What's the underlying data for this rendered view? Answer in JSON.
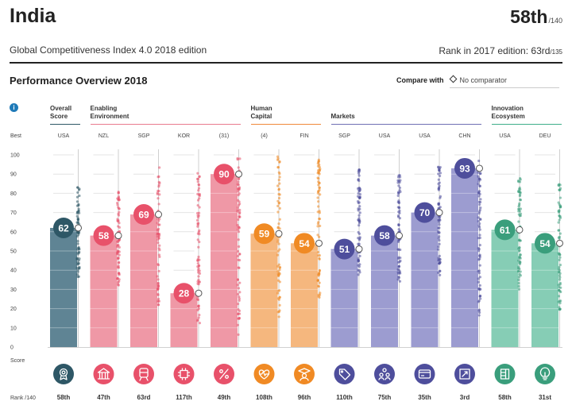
{
  "header": {
    "country": "India",
    "rank": "58th",
    "rank_of": "/140",
    "subtitle": "Global Competitiveness Index 4.0 2018 edition",
    "rank_2017_label": "Rank in 2017 edition: 63rd",
    "rank_2017_of": "/135"
  },
  "overview": {
    "title": "Performance Overview 2018",
    "compare_label": "Compare with",
    "compare_value": "No comparator",
    "info_icon": "i"
  },
  "groups": [
    {
      "label": "Overall\nScore",
      "color": "#2e5766",
      "pillars": [
        0
      ]
    },
    {
      "label": "Enabling\nEnvironment",
      "color": "#e87a8e",
      "pillars": [
        1,
        2,
        3,
        4
      ]
    },
    {
      "label": "Human\nCapital",
      "color": "#f0893a",
      "pillars": [
        5,
        6
      ]
    },
    {
      "label": "Markets",
      "color": "#6f6fb3",
      "pillars": [
        7,
        8,
        9,
        10
      ]
    },
    {
      "label": "Innovation\nEcosystem",
      "color": "#3fae8a",
      "pillars": [
        11,
        12
      ]
    }
  ],
  "chart_data": {
    "type": "bar",
    "title": "Performance Overview 2018",
    "ylabel": "Score",
    "ylim": [
      0,
      100
    ],
    "yticks": [
      0,
      10,
      20,
      30,
      40,
      50,
      60,
      70,
      80,
      90,
      100
    ],
    "best_label": "Best",
    "score_label": "Score",
    "rank_label": "Rank /140",
    "categories": [
      "Overall Score",
      "Institutions",
      "Infrastructure",
      "ICT adoption",
      "Macroeconomic stability",
      "Health",
      "Skills",
      "Product market",
      "Labour market",
      "Financial system",
      "Market size",
      "Business dynamism",
      "Innovation capability"
    ],
    "best": [
      "USA",
      "NZL",
      "SGP",
      "KOR",
      "(31)",
      "(4)",
      "FIN",
      "SGP",
      "USA",
      "USA",
      "CHN",
      "USA",
      "DEU"
    ],
    "values": [
      62,
      58,
      69,
      28,
      90,
      59,
      54,
      51,
      58,
      70,
      93,
      61,
      54
    ],
    "ranks": [
      "58th",
      "47th",
      "63rd",
      "117th",
      "49th",
      "108th",
      "96th",
      "110th",
      "75th",
      "35th",
      "3rd",
      "58th",
      "31st"
    ],
    "icons": [
      "award-icon",
      "building-icon",
      "train-icon",
      "chip-icon",
      "percent-icon",
      "heart-pulse-icon",
      "graduate-icon",
      "tag-icon",
      "people-icon",
      "card-icon",
      "expand-icon",
      "flask-icon",
      "lightbulb-icon"
    ],
    "distribution_ranges": [
      [
        36,
        85
      ],
      [
        30,
        82
      ],
      [
        22,
        96
      ],
      [
        12,
        91
      ],
      [
        3,
        100
      ],
      [
        15,
        100
      ],
      [
        25,
        98
      ],
      [
        37,
        93
      ],
      [
        34,
        90
      ],
      [
        35,
        94
      ],
      [
        14,
        97
      ],
      [
        30,
        90
      ],
      [
        19,
        85
      ]
    ],
    "colors": {
      "overall": "#2e5766",
      "overall_bar": "#5f8494",
      "enabling": "#e8516a",
      "enabling_bar": "#ef98a6",
      "human": "#f08a24",
      "human_bar": "#f5b77e",
      "markets": "#4e4e9c",
      "markets_bar": "#9c9cd0",
      "innovation": "#3a9e7c",
      "innovation_bar": "#86cdb5"
    }
  }
}
